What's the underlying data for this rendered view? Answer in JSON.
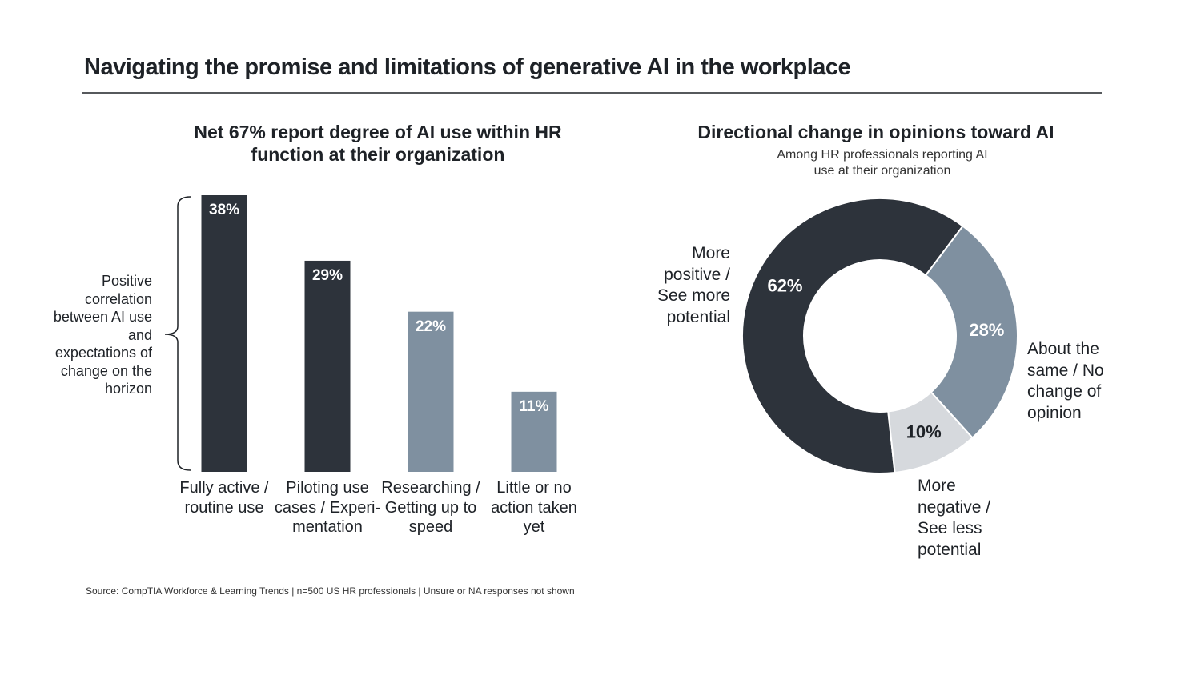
{
  "header": {
    "title": "Navigating the promise and limitations of generative AI in the workplace"
  },
  "chart_data": [
    {
      "type": "bar",
      "title": "Net 67% report degree of AI use within HR function at their organization",
      "annotation": "Positive correlation between AI use and expectations of change on the horizon",
      "categories": [
        "Fully active / routine use",
        "Piloting use cases / Experi-mentation",
        "Researching / Getting up to speed",
        "Little or no action taken yet"
      ],
      "values": [
        38,
        29,
        22,
        11
      ],
      "value_labels": [
        "38%",
        "29%",
        "22%",
        "11%"
      ],
      "colors": [
        "#2d333b",
        "#2d333b",
        "#7f90a0",
        "#7f90a0"
      ]
    },
    {
      "type": "pie",
      "title": "Directional change in opinions toward AI",
      "subtitle": "Among HR professionals reporting AI use at their organization",
      "categories": [
        "More positive / See more potential",
        "About the same / No change of opinion",
        "More negative / See less potential"
      ],
      "values": [
        62,
        28,
        10
      ],
      "value_labels": [
        "62%",
        "28%",
        "10%"
      ],
      "colors": [
        "#2d333b",
        "#7f90a0",
        "#d6d9dd"
      ]
    }
  ],
  "footer": {
    "source": "Source: CompTIA Workforce & Learning Trends | n=500 US HR professionals | Unsure or NA responses not shown"
  }
}
